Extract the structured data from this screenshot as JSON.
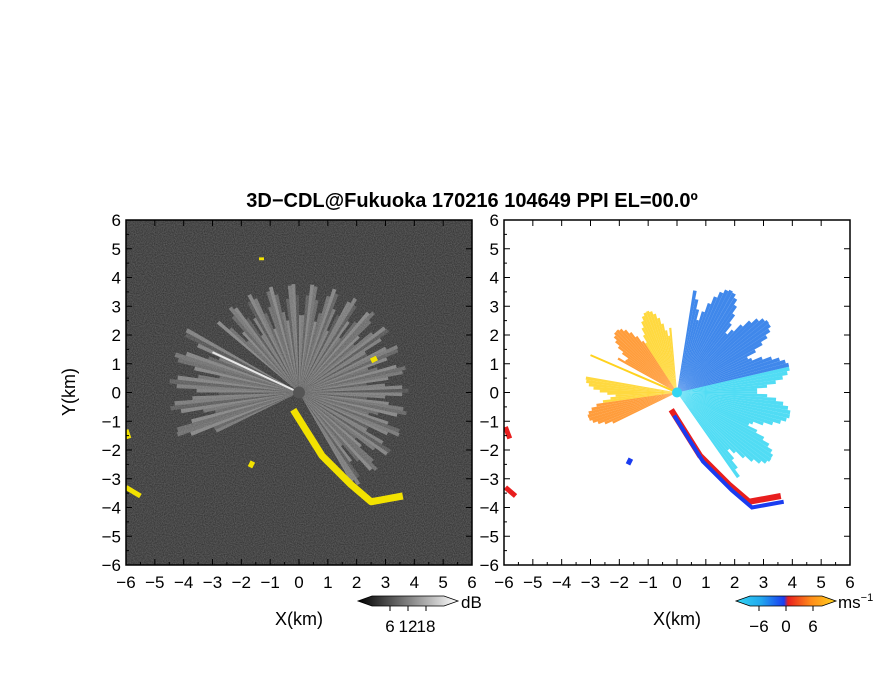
{
  "title": "3D−CDL@Fukuoka 170216 104649 PPI EL=00.0º",
  "chart_data": [
    {
      "type": "heatmap",
      "panel": "reflectivity",
      "xlabel": "X(km)",
      "ylabel": "Y(km)",
      "xlim": [
        -6,
        6
      ],
      "ylim": [
        -6,
        6
      ],
      "xticks": [
        "−6",
        "−5",
        "−4",
        "−3",
        "−2",
        "−1",
        "0",
        "1",
        "2",
        "3",
        "4",
        "5",
        "6"
      ],
      "yticks": [
        "6",
        "5",
        "4",
        "3",
        "2",
        "1",
        "0",
        "−1",
        "−2",
        "−3",
        "−4",
        "−5",
        "−6"
      ],
      "background_color": "#2a2a2a",
      "highlight_color": "#f2e200",
      "colorbar": {
        "unit": "dB",
        "ticks": [
          "6",
          "12",
          "18"
        ],
        "range": [
          0,
          24
        ]
      },
      "features": [
        {
          "kind": "fan",
          "from_deg": 150,
          "to_deg": 205,
          "radius_km": 4.5
        },
        {
          "kind": "fan",
          "from_deg": -60,
          "to_deg": 140,
          "radius_km": 3.8
        },
        {
          "kind": "highlight_band",
          "points_km": [
            [
              -0.2,
              -0.6
            ],
            [
              0.8,
              -2.2
            ],
            [
              1.8,
              -3.2
            ],
            [
              2.5,
              -3.8
            ],
            [
              3.6,
              -3.6
            ]
          ]
        }
      ]
    },
    {
      "type": "heatmap",
      "panel": "doppler_velocity",
      "xlabel": "X(km)",
      "xlim": [
        -6,
        6
      ],
      "ylim": [
        -6,
        6
      ],
      "xticks": [
        "−6",
        "−5",
        "−4",
        "−3",
        "−2",
        "−1",
        "0",
        "1",
        "2",
        "3",
        "4",
        "5",
        "6"
      ],
      "yticks": [
        "6",
        "5",
        "4",
        "3",
        "2",
        "1",
        "0",
        "−1",
        "−2",
        "−3",
        "−4",
        "−5",
        "−6"
      ],
      "colorbar": {
        "unit": "ms",
        "unit_sup": "−1",
        "ticks": [
          "−6",
          "0",
          "6"
        ],
        "range": [
          -8,
          8
        ]
      },
      "colors": {
        "toward": "#1e73e8",
        "toward_light": "#33d6f2",
        "away": "#ff8c1a",
        "away_light": "#ffd21e",
        "strong_away": "#e81e1e",
        "strong_toward": "#1a3cf0"
      },
      "features": [
        {
          "kind": "sector_away",
          "from_deg": 95,
          "to_deg": 150,
          "radius_km": 3.0,
          "velocity": 4
        },
        {
          "kind": "sector_away",
          "from_deg": 170,
          "to_deg": 205,
          "radius_km": 3.2,
          "velocity": 3
        },
        {
          "kind": "sector_toward",
          "from_deg": -55,
          "to_deg": 80,
          "radius_km": 4.0,
          "velocity": -4
        }
      ]
    }
  ]
}
